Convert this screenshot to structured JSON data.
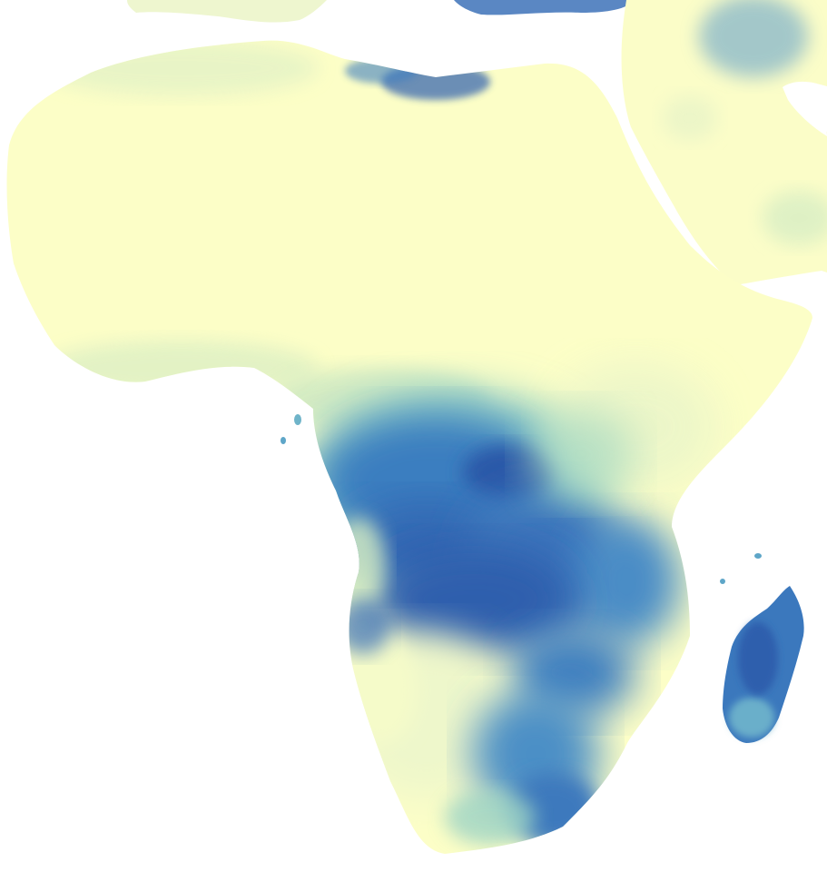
{
  "map": {
    "colors": {
      "background": "#ffffff",
      "low": "#fdfec8",
      "low_mid": "#cbe8c0",
      "mid": "#7fc7c6",
      "high_mid": "#3f8fc9",
      "high": "#2a5aa8"
    },
    "regions": [
      "north-africa",
      "arabian-peninsula",
      "europe-coast",
      "west-africa",
      "central-africa",
      "east-africa",
      "southern-africa",
      "madagascar"
    ]
  }
}
